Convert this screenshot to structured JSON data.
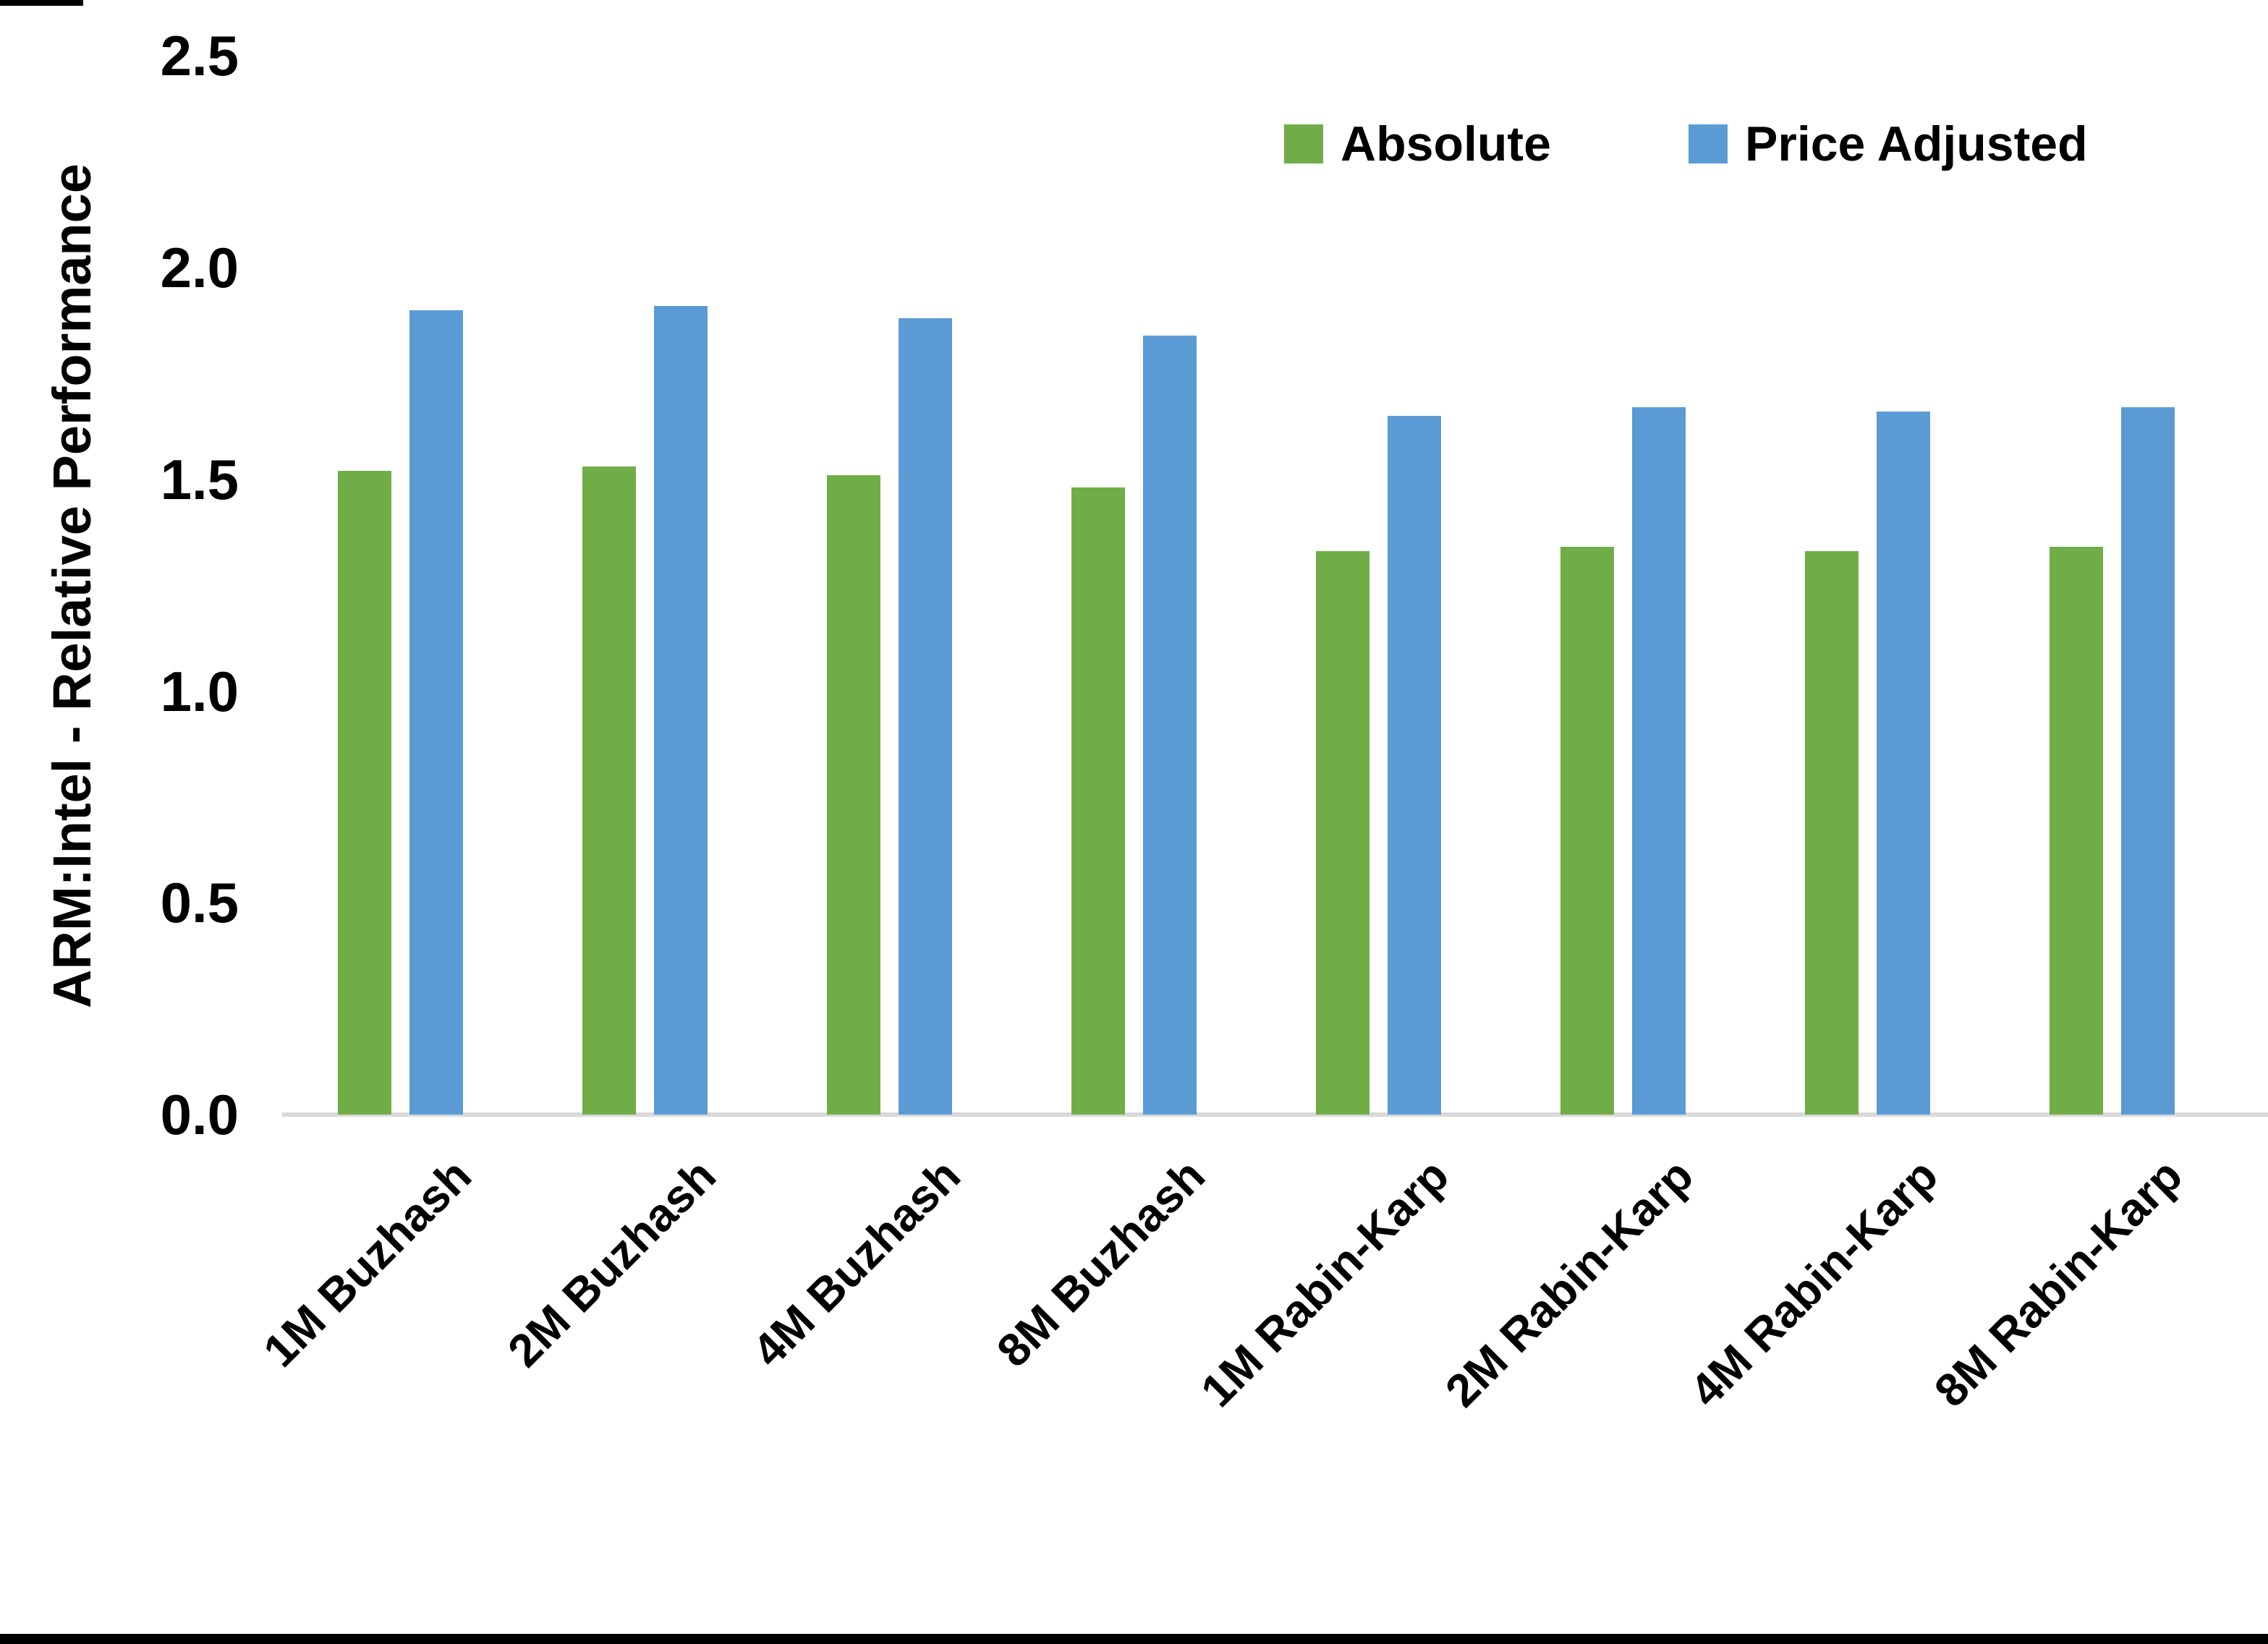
{
  "chart_data": {
    "type": "bar",
    "title": "",
    "xlabel": "",
    "ylabel": "ARM:Intel - Relative Performance",
    "categories": [
      "1M Buzhash",
      "2M Buzhash",
      "4M Buzhash",
      "8M Buzhash",
      "1M Rabin-Karp",
      "2M Rabin-Karp",
      "4M Rabin-Karp",
      "8M Rabin-Karp"
    ],
    "series": [
      {
        "name": "Absolute",
        "color": "#70AD47",
        "values": [
          1.52,
          1.53,
          1.51,
          1.48,
          1.33,
          1.34,
          1.33,
          1.34
        ]
      },
      {
        "name": "Price Adjusted",
        "color": "#5B9BD5",
        "values": [
          1.9,
          1.91,
          1.88,
          1.84,
          1.65,
          1.67,
          1.66,
          1.67
        ]
      }
    ],
    "ylim": [
      0.0,
      2.5
    ],
    "yticks": [
      "0.0",
      "0.5",
      "1.0",
      "1.5",
      "2.0",
      "2.5"
    ],
    "ytick_values": [
      0.0,
      0.5,
      1.0,
      1.5,
      2.0,
      2.5
    ],
    "grid": false,
    "legend_position": "top-right",
    "colors": {
      "axis_line": "#D9D9D9",
      "text": "#000000",
      "background": "#FFFFFF",
      "border": "#000000"
    }
  }
}
